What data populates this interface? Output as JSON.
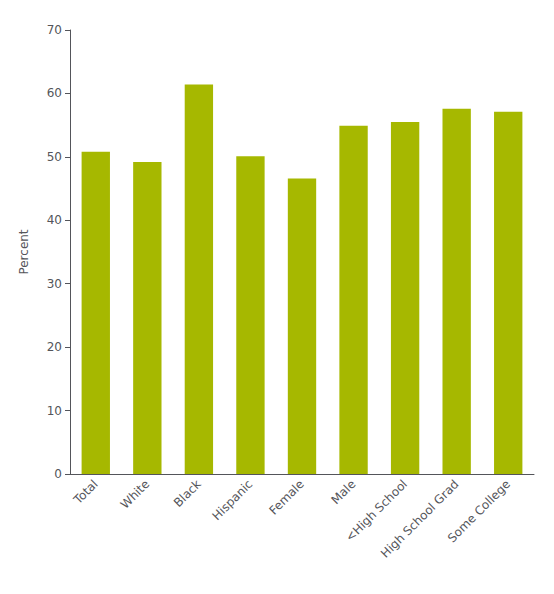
{
  "chart_data": {
    "type": "bar",
    "categories": [
      "Total",
      "White",
      "Black",
      "Hispanic",
      "Female",
      "Male",
      "<High School",
      "High School Grad",
      "Some College"
    ],
    "values": [
      50.8,
      49.2,
      61.4,
      50.1,
      46.6,
      54.9,
      55.5,
      57.6,
      57.1
    ],
    "color": "#a6b800",
    "ylabel": "Percent",
    "ylim": [
      0,
      70
    ],
    "yticks": [
      0,
      10,
      20,
      30,
      40,
      50,
      60,
      70
    ],
    "grid": false
  }
}
